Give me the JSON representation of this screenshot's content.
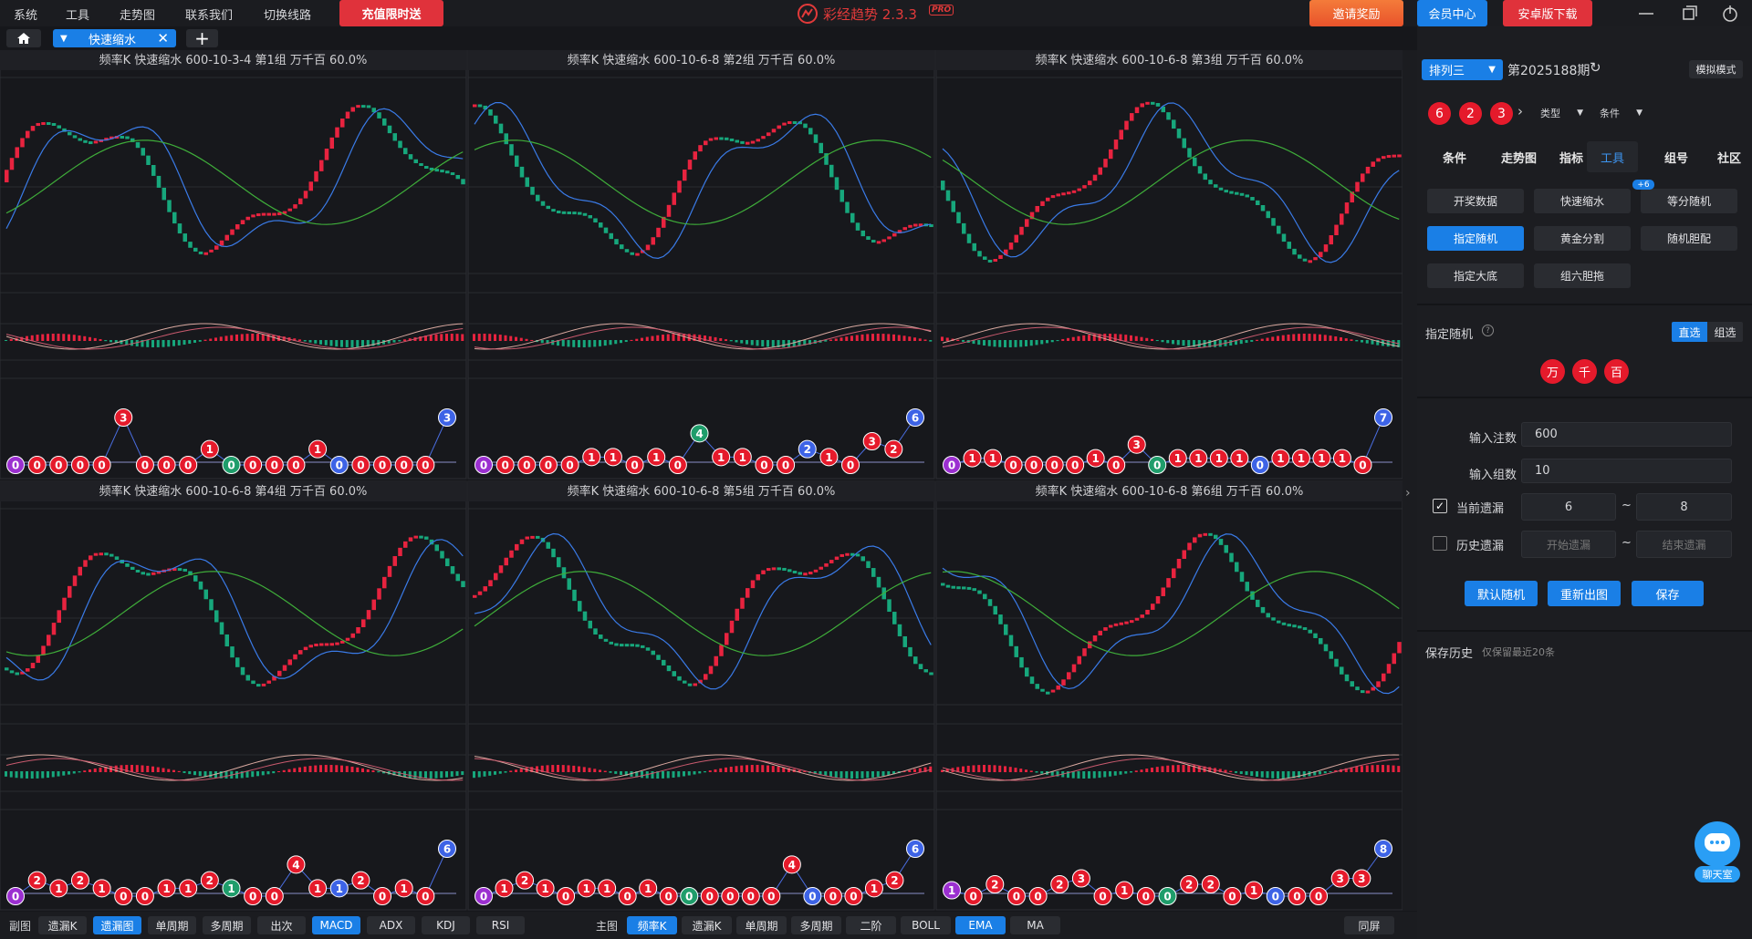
{
  "menu": [
    "系统",
    "工具",
    "走势图",
    "联系我们",
    "切换线路"
  ],
  "promo": "充值限时送",
  "app_title": "彩经趋势 2.3.3",
  "badge": "PRO",
  "top_buttons": [
    "邀请奖励",
    "会员中心",
    "安卓版下载"
  ],
  "tab": "快速缩水",
  "ball_colors": {
    "start": "#9b2fd0",
    "end": "#3d63e6",
    "mid": "#1f9d6b",
    "blue": "#3d63e6",
    "default": "#e51a2b"
  },
  "panels": [
    {
      "title": "频率K  快速缩水  600-10-3-4 第1组  万千百  60.0%",
      "balls": [
        0,
        0,
        0,
        0,
        0,
        3,
        0,
        0,
        0,
        1,
        0,
        0,
        0,
        0,
        1,
        0,
        0,
        0,
        0,
        0,
        3
      ],
      "mid": 10,
      "blue": 15
    },
    {
      "title": "频率K  快速缩水  600-10-6-8 第2组  万千百  60.0%",
      "balls": [
        0,
        0,
        0,
        0,
        0,
        1,
        1,
        0,
        1,
        0,
        4,
        1,
        1,
        0,
        0,
        2,
        1,
        0,
        3,
        2,
        6
      ],
      "mid": 10,
      "blue": 15
    },
    {
      "title": "频率K  快速缩水  600-10-6-8 第3组  万千百  60.0%",
      "balls": [
        0,
        1,
        1,
        0,
        0,
        0,
        0,
        1,
        0,
        3,
        0,
        1,
        1,
        1,
        1,
        0,
        1,
        1,
        1,
        1,
        0,
        7
      ],
      "mid": 10,
      "blue": 15
    },
    {
      "title": "频率K  快速缩水  600-10-6-8 第4组  万千百  60.0%",
      "balls": [
        0,
        2,
        1,
        2,
        1,
        0,
        0,
        1,
        1,
        2,
        1,
        0,
        0,
        4,
        1,
        1,
        2,
        0,
        1,
        0,
        6
      ],
      "mid": 10,
      "blue": 15
    },
    {
      "title": "频率K  快速缩水  600-10-6-8 第5组  万千百  60.0%",
      "balls": [
        0,
        1,
        2,
        1,
        0,
        1,
        1,
        0,
        1,
        0,
        0,
        0,
        0,
        0,
        0,
        4,
        0,
        0,
        0,
        1,
        2,
        6
      ],
      "mid": 10,
      "blue": 16
    },
    {
      "title": "频率K  快速缩水  600-10-6-8 第6组  万千百  60.0%",
      "balls": [
        1,
        0,
        2,
        0,
        0,
        2,
        3,
        0,
        1,
        0,
        0,
        2,
        2,
        0,
        1,
        0,
        0,
        0,
        3,
        3,
        8
      ],
      "mid": 10,
      "blue": 15
    }
  ],
  "sub_label": "副图",
  "sub_buttons": [
    "遗漏K",
    "遗漏图",
    "单周期",
    "多周期",
    "出次",
    "MACD",
    "ADX",
    "KDJ",
    "RSI"
  ],
  "sub_active": [
    1,
    5
  ],
  "main_label": "主图",
  "main_buttons": [
    "频率K",
    "遗漏K",
    "单周期",
    "多周期",
    "二阶",
    "BOLL",
    "EMA",
    "MA"
  ],
  "main_active": [
    0,
    6
  ],
  "same_screen": "同屏",
  "sidebar": {
    "lottery": "排列三",
    "period": "第2025188期",
    "mode": "模拟模式",
    "draw": [
      "6",
      "2",
      "3"
    ],
    "filters": [
      "类型",
      "条件"
    ],
    "tabs": [
      "条件",
      "走势图",
      "指标",
      "工具",
      "组号",
      "社区"
    ],
    "active_tab": 3,
    "tools": [
      "开奖数据",
      "快速缩水",
      "等分随机",
      "指定随机",
      "黄金分割",
      "随机胆配",
      "指定大底",
      "组六胆拖"
    ],
    "tools_badge": "+6",
    "active_tool": 3,
    "section": "指定随机",
    "toggle": [
      "直选",
      "组选"
    ],
    "positions": [
      "万",
      "千",
      "百"
    ],
    "fields": [
      {
        "label": "输入注数",
        "value": "600"
      },
      {
        "label": "输入组数",
        "value": "10"
      }
    ],
    "current": {
      "label": "当前遗漏",
      "from": "6",
      "to": "8"
    },
    "history": {
      "label": "历史遗漏",
      "from": "开始遗漏",
      "to": "结束遗漏"
    },
    "tilde": "~",
    "actions": [
      "默认随机",
      "重新出图",
      "保存"
    ],
    "save_history": "保存历史",
    "save_note": "仅保留最近20条",
    "chat": "聊天室"
  }
}
